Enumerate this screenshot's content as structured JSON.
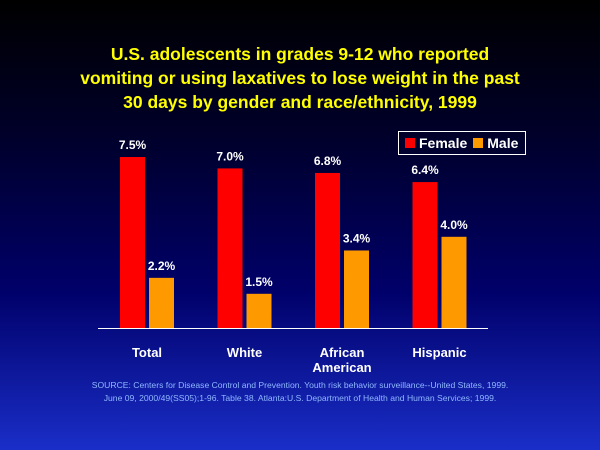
{
  "title_lines": [
    "U.S. adolescents in grades 9-12 who reported",
    "vomiting or using laxatives to lose weight in the past",
    "30 days by gender and race/ethnicity, 1999"
  ],
  "source_lines": [
    "SOURCE: Centers for Disease Control and Prevention. Youth risk behavior surveillance--United States, 1999.",
    "June 09, 2000/49(SS05);1-96. Table 38. Atlanta:U.S. Department of Health and Human Services; 1999."
  ],
  "colors": {
    "female": "#ff0000",
    "male": "#ff9900",
    "title": "#ffff00",
    "text": "#ffffff"
  },
  "chart_data": {
    "type": "bar",
    "title": "U.S. adolescents in grades 9-12 who reported vomiting or using laxatives to lose weight in the past 30 days by gender and race/ethnicity, 1999",
    "categories": [
      [
        "Total"
      ],
      [
        "White"
      ],
      [
        "African",
        "American"
      ],
      [
        "Hispanic"
      ]
    ],
    "series": [
      {
        "name": "Female",
        "values": [
          7.5,
          7.0,
          6.8,
          6.4
        ],
        "labels": [
          "7.5%",
          "7.0%",
          "6.8%",
          "6.4%"
        ]
      },
      {
        "name": "Male",
        "values": [
          2.2,
          1.5,
          3.4,
          4.0
        ],
        "labels": [
          "2.2%",
          "1.5%",
          "3.4%",
          "4.0%"
        ]
      }
    ],
    "ylim": [
      0,
      7.5
    ],
    "legend": "top-right",
    "grid": false
  }
}
